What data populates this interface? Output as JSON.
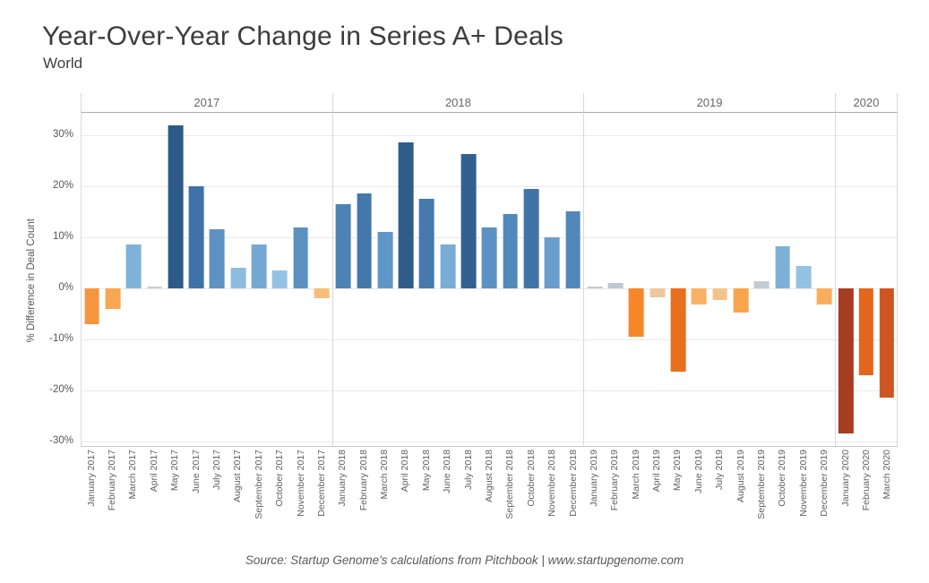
{
  "title": "Year-Over-Year Change in Series A+ Deals",
  "subtitle": "World",
  "source": "Source: Startup Genome's calculations from Pitchbook | www.startupgenome.com",
  "chart_data": {
    "type": "bar",
    "title": "Year-Over-Year Change in Series A+ Deals",
    "subtitle": "World",
    "xlabel": "",
    "ylabel": "% Difference in Deal Count",
    "unit": "%",
    "grid": true,
    "legend": "none",
    "ylim": [
      -31,
      34.5
    ],
    "y_tick_values": [
      30,
      20,
      10,
      0,
      -10,
      -20,
      -30
    ],
    "y_tick_labels": [
      "30%",
      "20%",
      "10%",
      "0%",
      "-10%",
      "-20%",
      "-30%"
    ],
    "panels": [
      {
        "year": "2017",
        "months": [
          "January 2017",
          "February 2017",
          "March 2017",
          "April 2017",
          "May 2017",
          "June 2017",
          "July 2017",
          "August 2017",
          "September 2017",
          "October 2017",
          "November 2017",
          "December 2017"
        ],
        "values": [
          -7,
          -4,
          8.5,
          0.4,
          32,
          20,
          11.5,
          4,
          8.5,
          3.5,
          12,
          -2
        ],
        "colors": [
          "#f6953f",
          "#f8a64f",
          "#7fb2d8",
          "#c7ccd1",
          "#2d5b89",
          "#3f72a6",
          "#5e92c3",
          "#8cbde1",
          "#75a9d3",
          "#93c2e4",
          "#5c90c1",
          "#f7bd78"
        ]
      },
      {
        "year": "2018",
        "months": [
          "January 2018",
          "February 2018",
          "March 2018",
          "April 2018",
          "May 2018",
          "June 2018",
          "July 2018",
          "August 2018",
          "September 2018",
          "October 2018",
          "November 2018",
          "December 2018"
        ],
        "values": [
          16.5,
          18.5,
          11,
          28.5,
          17.5,
          8.5,
          26.3,
          12,
          14.5,
          19.5,
          10,
          15
        ],
        "colors": [
          "#4d82b4",
          "#4478ab",
          "#6096c7",
          "#2e5c8b",
          "#4679ac",
          "#79acd6",
          "#33618f",
          "#5c91c3",
          "#5289bb",
          "#4074a7",
          "#699dcb",
          "#5187b9"
        ]
      },
      {
        "year": "2019",
        "months": [
          "January 2019",
          "February 2019",
          "March 2019",
          "April 2019",
          "May 2019",
          "June 2019",
          "July 2019",
          "August 2019",
          "September 2019",
          "October 2019",
          "November 2019",
          "December 2019"
        ],
        "values": [
          0,
          1,
          -9.5,
          -1.8,
          -16.3,
          -3.2,
          -2.3,
          -4.7,
          1.4,
          8.2,
          4.4,
          -3.2
        ],
        "colors": [
          "#c3cad0",
          "#bcc9d3",
          "#f58728",
          "#edc89c",
          "#e76f1e",
          "#f9b164",
          "#f3c48a",
          "#f8a54b",
          "#c0ccd4",
          "#7cb0d6",
          "#94c2e4",
          "#f9ae5e"
        ]
      },
      {
        "year": "2020",
        "months": [
          "January 2020",
          "February 2020",
          "March 2020"
        ],
        "values": [
          -28.5,
          -17,
          -21.5
        ],
        "colors": [
          "#a63d20",
          "#e2661c",
          "#ce5520"
        ]
      }
    ]
  }
}
